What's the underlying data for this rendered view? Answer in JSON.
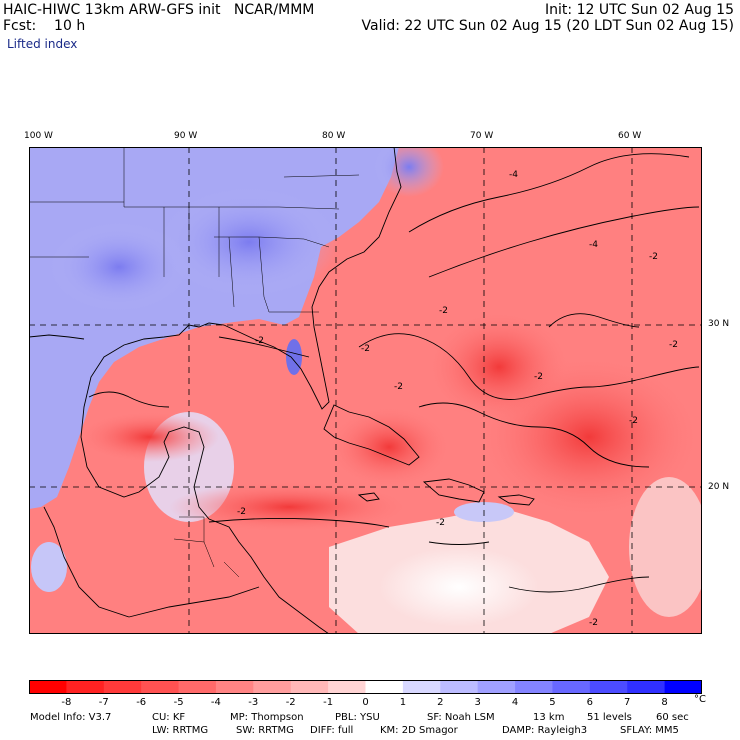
{
  "header": {
    "line1_left": "HAIC-HIWC 13km ARW-GFS init   NCAR/MMM",
    "line1_right": "Init: 12 UTC Sun 02 Aug 15",
    "line2_left": "Fcst:    10 h",
    "line2_right": "Valid: 22 UTC Sun 02 Aug 15 (20 LDT Sun 02 Aug 15)",
    "field_name": "Lifted index"
  },
  "axes": {
    "longitude_labels": [
      "100 W",
      "90 W",
      "80 W",
      "70 W",
      "60 W"
    ],
    "latitude_labels": [
      "30 N",
      "20 N"
    ]
  },
  "colorbar": {
    "unit": "°C",
    "tick_labels": [
      "-8",
      "-7",
      "-6",
      "-5",
      "-4",
      "-3",
      "-2",
      "-1",
      "0",
      "1",
      "2",
      "3",
      "4",
      "5",
      "6",
      "7",
      "8"
    ],
    "colors": [
      "#ff0000",
      "#ff2222",
      "#ff3a3a",
      "#ff5252",
      "#ff6a6a",
      "#ff8484",
      "#ff9e9e",
      "#ffb8b8",
      "#ffd4d4",
      "#ffffff",
      "#d8d8ff",
      "#bcbcff",
      "#a0a0ff",
      "#8484ff",
      "#6868ff",
      "#4c4cff",
      "#3030ff",
      "#0000ff"
    ]
  },
  "model_info": {
    "line1": [
      {
        "k": "model",
        "t": "Model Info: V3.7"
      },
      {
        "k": "cu",
        "t": "CU: KF"
      },
      {
        "k": "mp",
        "t": "MP: Thompson"
      },
      {
        "k": "pbl",
        "t": "PBL: YSU"
      },
      {
        "k": "sf",
        "t": "SF: Noah LSM"
      },
      {
        "k": "res",
        "t": "13 km"
      },
      {
        "k": "levels",
        "t": "51 levels"
      },
      {
        "k": "dt",
        "t": "60 sec"
      }
    ],
    "line2": [
      {
        "k": "lw",
        "t": "LW: RRTMG"
      },
      {
        "k": "sw",
        "t": "SW: RRTMG"
      },
      {
        "k": "diff",
        "t": "DIFF: full"
      },
      {
        "k": "km",
        "t": "KM: 2D Smagor"
      },
      {
        "k": "damp",
        "t": "DAMP: Rayleigh3"
      },
      {
        "k": "sflay",
        "t": "SFLAY: MM5"
      }
    ]
  },
  "map_contour_labels": [
    "-2",
    "-2",
    "-2",
    "-2",
    "-2",
    "-4",
    "-4",
    "-2",
    "-2",
    "-2",
    "-2",
    "-2",
    "-2"
  ]
}
